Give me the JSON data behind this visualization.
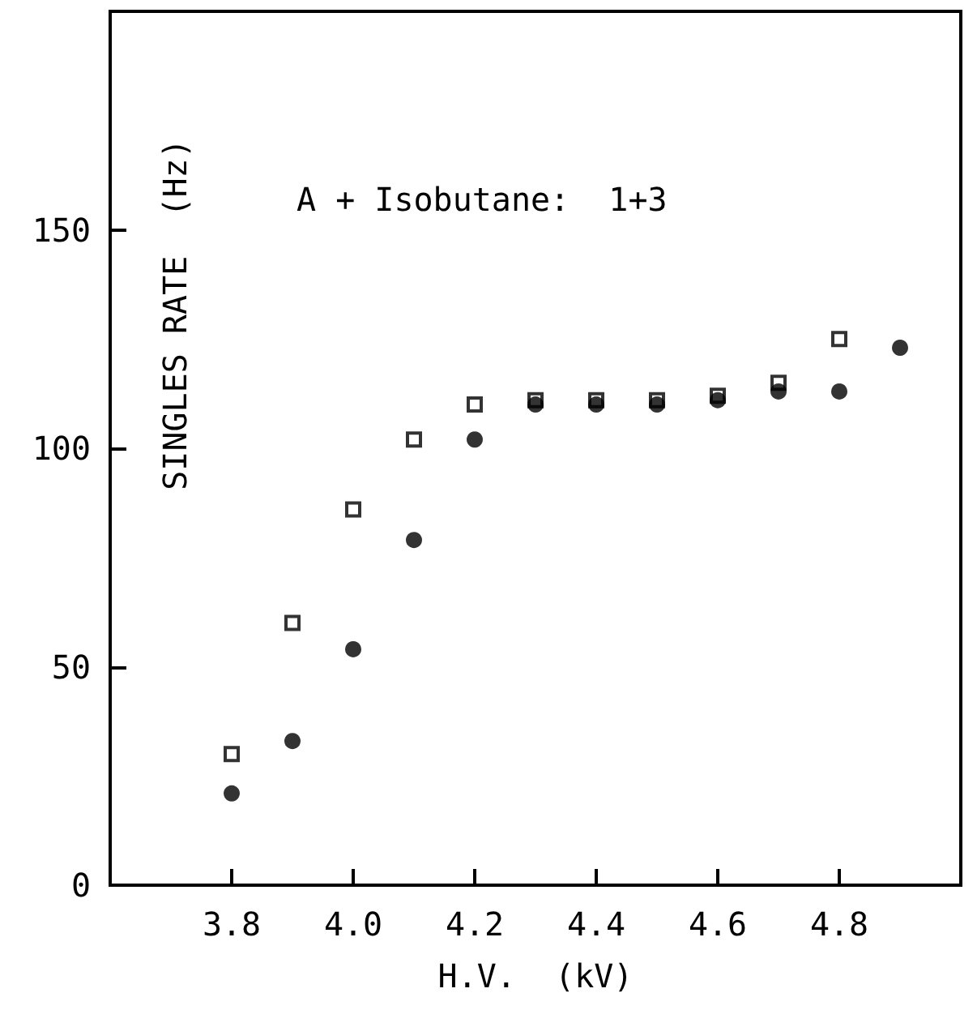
{
  "chart_data": {
    "type": "scatter",
    "xlabel": "H.V.  (kV)",
    "ylabel": "SINGLES RATE  (Hz)",
    "annotations": [
      "A + Isobutane:  1+3"
    ],
    "xlim": [
      3.6,
      5.0
    ],
    "xticks": [
      3.8,
      {
        "value": 4.0,
        "label": "4.0"
      },
      4.2,
      4.4,
      4.6,
      4.8
    ],
    "ylim": [
      0,
      200
    ],
    "yticks": [
      0,
      50,
      100,
      150
    ],
    "grid": false,
    "series": [
      {
        "color": "#000000",
        "marker": "square",
        "x": [
          3.8,
          3.9,
          4.0,
          4.1,
          4.2,
          4.3,
          4.4,
          4.5,
          4.6,
          4.7,
          4.8
        ],
        "values": [
          30,
          60,
          86,
          102,
          110,
          111,
          111,
          111,
          112,
          115,
          125
        ]
      },
      {
        "color": "#000000",
        "marker": "circle",
        "x": [
          3.8,
          3.9,
          4.0,
          4.1,
          4.2,
          4.3,
          4.4,
          4.5,
          4.6,
          4.7,
          4.8,
          4.9
        ],
        "values": [
          21,
          33,
          54,
          79,
          102,
          110,
          110,
          110,
          111,
          113,
          113,
          123
        ]
      }
    ]
  }
}
